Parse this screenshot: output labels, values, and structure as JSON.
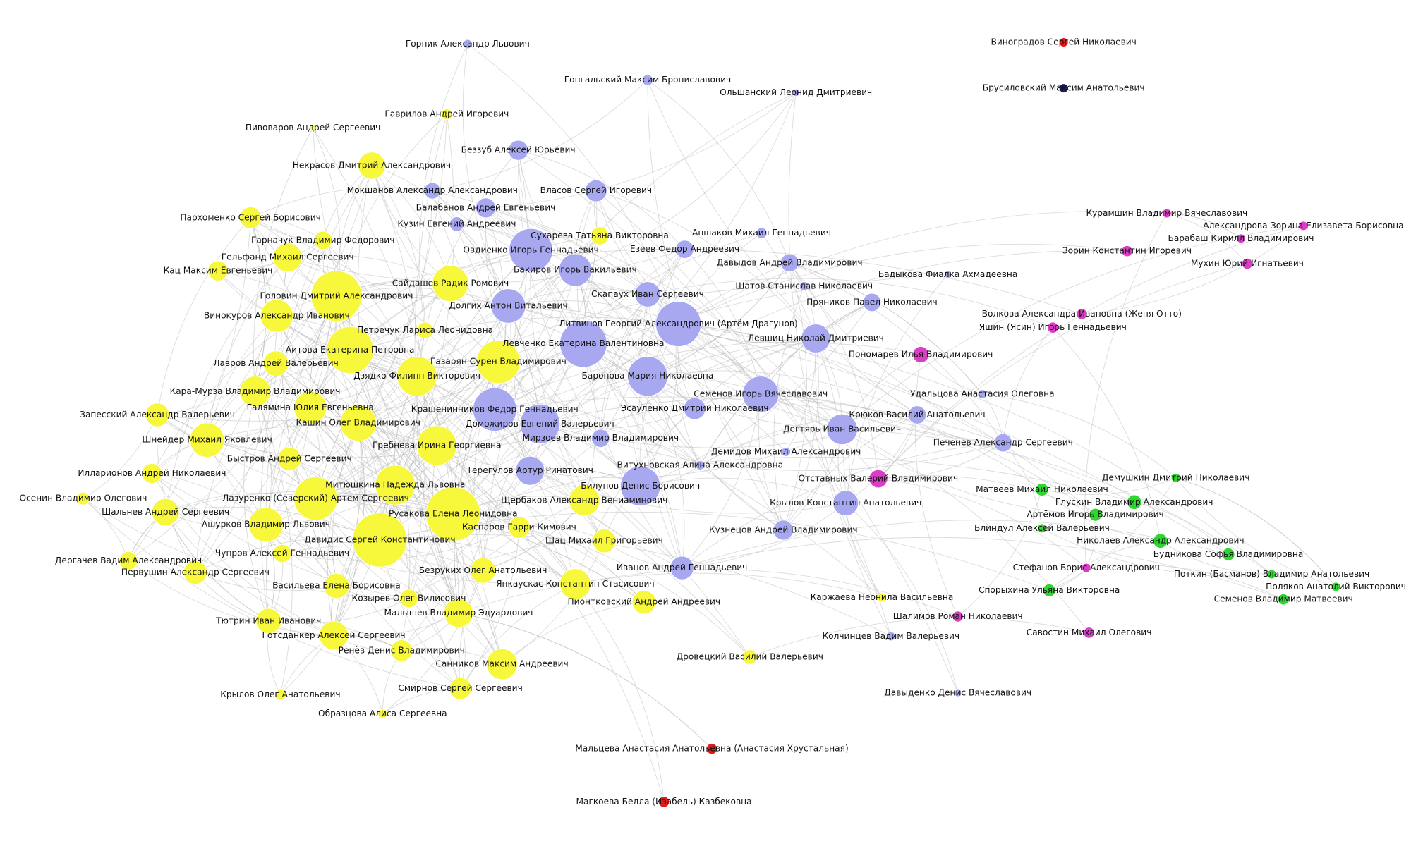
{
  "nodes": [
    {
      "label": "Горник Александр Львович",
      "color": "#a8a8f0"
    },
    {
      "label": "Виноградов Сергей Николаевич",
      "color": "#dd1c1c"
    },
    {
      "label": "Гонгальский Максим Брониславович",
      "color": "#a8a8f0"
    },
    {
      "label": "Ольшанский Леонид Дмитриевич",
      "color": "#a8a8f0"
    },
    {
      "label": "Брусиловский Максим Анатольевич",
      "color": "#1a1a66"
    },
    {
      "label": "Гаврилов Андрей Игоревич",
      "color": "#f7f73b"
    },
    {
      "label": "Пивоваров Андрей Сергеевич",
      "color": "#f7f73b"
    },
    {
      "label": "Беззуб Алексей Юрьевич",
      "color": "#a8a8f0"
    },
    {
      "label": "Некрасов Дмитрий Александрович",
      "color": "#f7f73b"
    },
    {
      "label": "Мокшанов Александр Александрович",
      "color": "#a8a8f0"
    },
    {
      "label": "Власов Сергей Игоревич",
      "color": "#a8a8f0"
    },
    {
      "label": "Балабанов Андрей Евгеньевич",
      "color": "#a8a8f0"
    },
    {
      "label": "Кузин Евгений Андреевич",
      "color": "#a8a8f0"
    },
    {
      "label": "Пархоменко Сергей Борисович",
      "color": "#f7f73b"
    },
    {
      "label": "Курамшин Владимир Вячеславович",
      "color": "#d93fc4"
    },
    {
      "label": "Александрова-Зорина Елизавета Борисовна",
      "color": "#d93fc4"
    },
    {
      "label": "Сухарева Татьяна Викторовна",
      "color": "#f7f73b"
    },
    {
      "label": "Аншаков Михаил Геннадьевич",
      "color": "#a8a8f0"
    },
    {
      "label": "Гарначук Владимир Федорович",
      "color": "#f7f73b"
    },
    {
      "label": "Овдиенко Игорь Геннадьевич",
      "color": "#a8a8f0"
    },
    {
      "label": "Езеев Федор Андреевич",
      "color": "#a8a8f0"
    },
    {
      "label": "Барабаш Кирилл Владимирович",
      "color": "#d93fc4"
    },
    {
      "label": "Зорин Константин Игоревич",
      "color": "#d93fc4"
    },
    {
      "label": "Гельфанд Михаил Сергеевич",
      "color": "#f7f73b"
    },
    {
      "label": "Давыдов Андрей Владимирович",
      "color": "#a8a8f0"
    },
    {
      "label": "Мухин Юрий Игнатьевич",
      "color": "#d93fc4"
    },
    {
      "label": "Кац Максим Евгеньевич",
      "color": "#f7f73b"
    },
    {
      "label": "Бакиров Игорь Вакильевич",
      "color": "#a8a8f0"
    },
    {
      "label": "Бадыкова Фиалка Ахмадеевна",
      "color": "#a8a8f0"
    },
    {
      "label": "Сайдашев Радик Ромович",
      "color": "#f7f73b"
    },
    {
      "label": "Шатов Станислав Николаевич",
      "color": "#a8a8f0"
    },
    {
      "label": "Скапаух Иван Сергеевич",
      "color": "#a8a8f0"
    },
    {
      "label": "Головин Дмитрий Александрович",
      "color": "#f7f73b"
    },
    {
      "label": "Пряников Павел Николаевич",
      "color": "#a8a8f0"
    },
    {
      "label": "Долгих Антон Витальевич",
      "color": "#a8a8f0"
    },
    {
      "label": "Волкова Александра Ивановна (Женя Отто)",
      "color": "#d93fc4"
    },
    {
      "label": "Винокуров Александр Иванович",
      "color": "#f7f73b"
    },
    {
      "label": "Литвинов Георгий Александрович (Артём Драгунов)",
      "color": "#a8a8f0"
    },
    {
      "label": "Яшин (Ясин) Игорь Геннадьевич",
      "color": "#d93fc4"
    },
    {
      "label": "Петречук Лариса Леонидовна",
      "color": "#f7f73b"
    },
    {
      "label": "Левшиц Николай Дмитриевич",
      "color": "#a8a8f0"
    },
    {
      "label": "Левченко Екатерина Валентиновна",
      "color": "#a8a8f0"
    },
    {
      "label": "Аитова Екатерина Петровна",
      "color": "#f7f73b"
    },
    {
      "label": "Пономарев Илья Владимирович",
      "color": "#d93fc4"
    },
    {
      "label": "Газарян Сурен Владимирович",
      "color": "#f7f73b"
    },
    {
      "label": "Лавров Андрей Валерьевич",
      "color": "#f7f73b"
    },
    {
      "label": "Дзядко Филипп Викторович",
      "color": "#f7f73b"
    },
    {
      "label": "Баронова Мария Николаевна",
      "color": "#a8a8f0"
    },
    {
      "label": "Кара-Мурза Владимир Владимирович",
      "color": "#f7f73b"
    },
    {
      "label": "Семенов Игорь Вячеславович",
      "color": "#a8a8f0"
    },
    {
      "label": "Удальцова Анастасия Олеговна",
      "color": "#a8a8f0"
    },
    {
      "label": "Галямина Юлия Евгеньевна",
      "color": "#f7f73b"
    },
    {
      "label": "Крашенинников Федор Геннадьевич",
      "color": "#a8a8f0"
    },
    {
      "label": "Эсауленко Дмитрий Николаевич",
      "color": "#a8a8f0"
    },
    {
      "label": "Запесский Александр Валерьевич",
      "color": "#f7f73b"
    },
    {
      "label": "Крюков Василий Анатольевич",
      "color": "#a8a8f0"
    },
    {
      "label": "Кашин Олег Владимирович",
      "color": "#f7f73b"
    },
    {
      "label": "Доможиров Евгений Валерьевич",
      "color": "#a8a8f0"
    },
    {
      "label": "Дегтярь Иван Васильевич",
      "color": "#a8a8f0"
    },
    {
      "label": "Шнейдер Михаил Яковлевич",
      "color": "#f7f73b"
    },
    {
      "label": "Мирзоев Владимир Владимирович",
      "color": "#a8a8f0"
    },
    {
      "label": "Печенев Александр Сергеевич",
      "color": "#a8a8f0"
    },
    {
      "label": "Гребнева Ирина Георгиевна",
      "color": "#f7f73b"
    },
    {
      "label": "Демидов Михаил Александрович",
      "color": "#a8a8f0"
    },
    {
      "label": "Быстров Андрей Сергеевич",
      "color": "#f7f73b"
    },
    {
      "label": "Витухновская Алина Александровна",
      "color": "#a8a8f0"
    },
    {
      "label": "Терегулов Артур Ринатович",
      "color": "#a8a8f0"
    },
    {
      "label": "Илларионов Андрей Николаевич",
      "color": "#f7f73b"
    },
    {
      "label": "Отставных Валерий Владимирович",
      "color": "#d93fc4"
    },
    {
      "label": "Демушкин Дмитрий Николаевич",
      "color": "#2fd62f"
    },
    {
      "label": "Митюшкина Надежда Львовна",
      "color": "#f7f73b"
    },
    {
      "label": "Билунов Денис Борисович",
      "color": "#a8a8f0"
    },
    {
      "label": "Матвеев Михаил Николаевич",
      "color": "#2fd62f"
    },
    {
      "label": "Осенин Владимир Олегович",
      "color": "#f7f73b"
    },
    {
      "label": "Лазуренко (Северский) Артем Сергеевич",
      "color": "#f7f73b"
    },
    {
      "label": "Щербаков Александр Вениаминович",
      "color": "#f7f73b"
    },
    {
      "label": "Глускин Владимир Александрович",
      "color": "#2fd62f"
    },
    {
      "label": "Крылов Константин Анатольевич",
      "color": "#a8a8f0"
    },
    {
      "label": "Шальнев Андрей Сергеевич",
      "color": "#f7f73b"
    },
    {
      "label": "Русакова Елена Леонидовна",
      "color": "#f7f73b"
    },
    {
      "label": "Артёмов Игорь Владимирович",
      "color": "#2fd62f"
    },
    {
      "label": "Ашурков Владимир Львович",
      "color": "#f7f73b"
    },
    {
      "label": "Каспаров Гарри Кимович",
      "color": "#f7f73b"
    },
    {
      "label": "Блиндул Алексей Валерьевич",
      "color": "#2fd62f"
    },
    {
      "label": "Кузнецов Андрей Владимирович",
      "color": "#a8a8f0"
    },
    {
      "label": "Давидис Сергей Константинович",
      "color": "#f7f73b"
    },
    {
      "label": "Шац Михаил Григорьевич",
      "color": "#f7f73b"
    },
    {
      "label": "Николаев Александр Александрович",
      "color": "#2fd62f"
    },
    {
      "label": "Чупров Алексей Геннадьевич",
      "color": "#f7f73b"
    },
    {
      "label": "Будникова Софья Владимировна",
      "color": "#2fd62f"
    },
    {
      "label": "Дергачев Вадим Александрович",
      "color": "#f7f73b"
    },
    {
      "label": "Иванов Андрей Геннадьевич",
      "color": "#a8a8f0"
    },
    {
      "label": "Стефанов Борис Александрович",
      "color": "#d93fc4"
    },
    {
      "label": "Безруких Олег Анатольевич",
      "color": "#f7f73b"
    },
    {
      "label": "Первушин Александр Сергеевич",
      "color": "#f7f73b"
    },
    {
      "label": "Поткин (Басманов) Владимир Анатольевич",
      "color": "#2fd62f"
    },
    {
      "label": "Янкаускас Константин Стасисович",
      "color": "#f7f73b"
    },
    {
      "label": "Васильева Елена Борисовна",
      "color": "#f7f73b"
    },
    {
      "label": "Поляков Анатолий Викторович",
      "color": "#2fd62f"
    },
    {
      "label": "Спорыхина Ульяна Викторовна",
      "color": "#2fd62f"
    },
    {
      "label": "Каржаева Неонила Васильевна",
      "color": "#f7f73b"
    },
    {
      "label": "Козырев Олег Вилисович",
      "color": "#f7f73b"
    },
    {
      "label": "Семенов Владимир Матвеевич",
      "color": "#2fd62f"
    },
    {
      "label": "Пионтковский Андрей Андреевич",
      "color": "#f7f73b"
    },
    {
      "label": "Малышев Владимир Эдуардович",
      "color": "#f7f73b"
    },
    {
      "label": "Шалимов Роман Николаевич",
      "color": "#d93fc4"
    },
    {
      "label": "Тютрин Иван Иванович",
      "color": "#f7f73b"
    },
    {
      "label": "Савостин Михаил Олегович",
      "color": "#d93fc4"
    },
    {
      "label": "Готсданкер Алексей Сергеевич",
      "color": "#f7f73b"
    },
    {
      "label": "Колчинцев Вадим Валерьевич",
      "color": "#a8a8f0"
    },
    {
      "label": "Ренёв Денис Владимирович",
      "color": "#f7f73b"
    },
    {
      "label": "Дровецкий Василий Валерьевич",
      "color": "#f7f73b"
    },
    {
      "label": "Санников Максим Андреевич",
      "color": "#f7f73b"
    },
    {
      "label": "Смирнов Сергей Сергеевич",
      "color": "#f7f73b"
    },
    {
      "label": "Давыденко Денис Вячеславович",
      "color": "#a8a8f0"
    },
    {
      "label": "Крылов Олег Анатольевич",
      "color": "#f7f73b"
    },
    {
      "label": "Образцова Алиса Сергеевна",
      "color": "#f7f73b"
    },
    {
      "label": "Мальцева Анастасия Анатольевна (Анастасия Хрустальная)",
      "color": "#dd1c1c"
    },
    {
      "label": "Магкоева Белла (Изабель) Казбековна",
      "color": "#dd1c1c"
    }
  ]
}
